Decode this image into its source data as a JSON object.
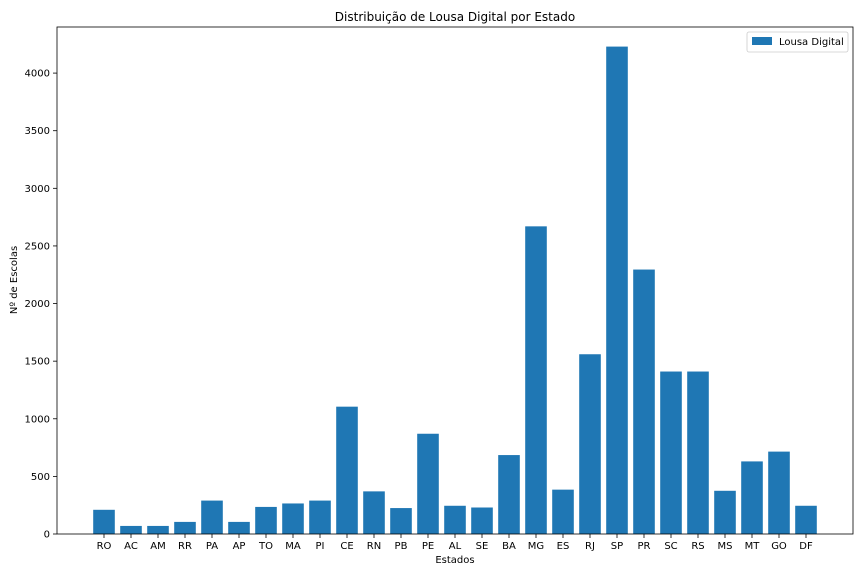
{
  "chart_data": {
    "type": "bar",
    "title": "Distribuição de Lousa Digital por Estado",
    "xlabel": "Estados",
    "ylabel": "Nº de Escolas",
    "ylim": [
      0,
      4400
    ],
    "yticks": [
      0,
      500,
      1000,
      1500,
      2000,
      2500,
      3000,
      3500,
      4000
    ],
    "grid": false,
    "legend_position": "top-right",
    "categories": [
      "RO",
      "AC",
      "AM",
      "RR",
      "PA",
      "AP",
      "TO",
      "MA",
      "PI",
      "CE",
      "RN",
      "PB",
      "PE",
      "AL",
      "SE",
      "BA",
      "MG",
      "ES",
      "RJ",
      "SP",
      "PR",
      "SC",
      "RS",
      "MS",
      "MT",
      "GO",
      "DF"
    ],
    "series": [
      {
        "name": "Lousa Digital",
        "color": "#1f77b4",
        "values": [
          210,
          70,
          70,
          105,
          290,
          105,
          235,
          265,
          290,
          1105,
          370,
          225,
          870,
          245,
          230,
          685,
          2670,
          385,
          1560,
          4230,
          2295,
          1410,
          1410,
          375,
          630,
          715,
          245
        ]
      }
    ]
  }
}
